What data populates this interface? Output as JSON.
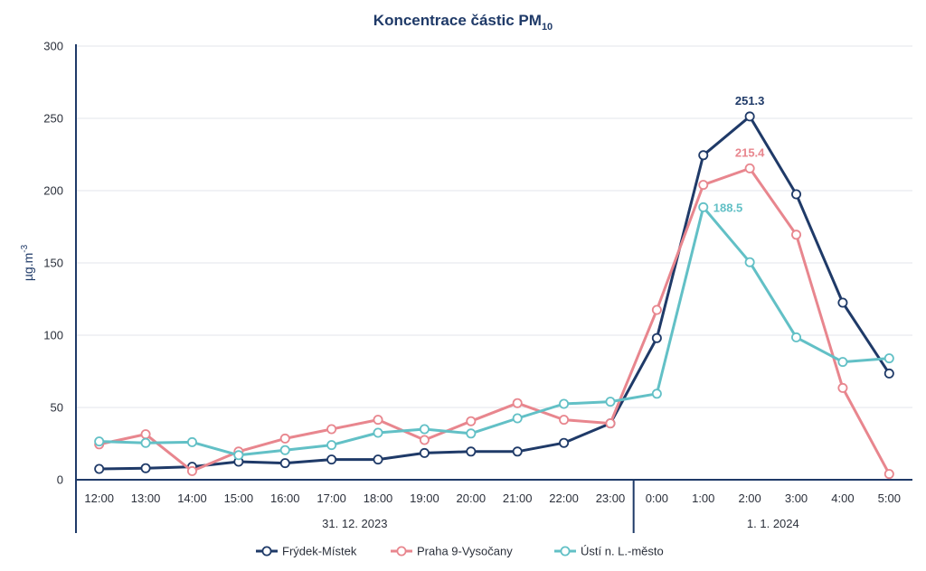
{
  "chart_data": {
    "type": "line",
    "title": "Koncentrace částic PM",
    "title_subscript": "10",
    "ylabel": "µg.m",
    "ylabel_superscript": "-3",
    "ylim": [
      0,
      300
    ],
    "yticks": [
      "0",
      "50",
      "100",
      "150",
      "200",
      "250",
      "300"
    ],
    "grid": true,
    "legend_position": "bottom",
    "categories": [
      "12:00",
      "13:00",
      "14:00",
      "15:00",
      "16:00",
      "17:00",
      "18:00",
      "19:00",
      "20:00",
      "21:00",
      "22:00",
      "23:00",
      "0:00",
      "1:00",
      "2:00",
      "3:00",
      "4:00",
      "5:00"
    ],
    "date_groups": [
      {
        "label": "31. 12. 2023",
        "count": 12
      },
      {
        "label": "1. 1. 2024",
        "count": 6
      }
    ],
    "series": [
      {
        "name": "Frýdek-Místek",
        "color": "#1f3a68",
        "values": [
          7.5,
          8,
          9,
          12.5,
          11.5,
          14,
          14,
          18.5,
          19.5,
          19.5,
          25.5,
          39,
          98,
          224.5,
          251.3,
          197.5,
          122.5,
          73.5
        ]
      },
      {
        "name": "Praha 9-Vysočany",
        "color": "#e8868e",
        "values": [
          24.5,
          31.5,
          6,
          19.5,
          28.5,
          35,
          41.5,
          27.5,
          40.5,
          53,
          41.5,
          39,
          117.5,
          204,
          215.4,
          169.5,
          63.5,
          4
        ]
      },
      {
        "name": "Ústí n. L.-město",
        "color": "#62c0c6",
        "values": [
          26.5,
          25.5,
          26,
          17,
          20.5,
          24,
          32.5,
          35,
          32,
          42.5,
          52.5,
          54,
          59.5,
          188.5,
          150.5,
          98.5,
          81.5,
          84
        ]
      }
    ],
    "data_labels": [
      {
        "series": 0,
        "index": 14,
        "text": "251.3"
      },
      {
        "series": 1,
        "index": 14,
        "text": "215.4"
      },
      {
        "series": 2,
        "index": 13,
        "text": "188.5"
      }
    ]
  }
}
